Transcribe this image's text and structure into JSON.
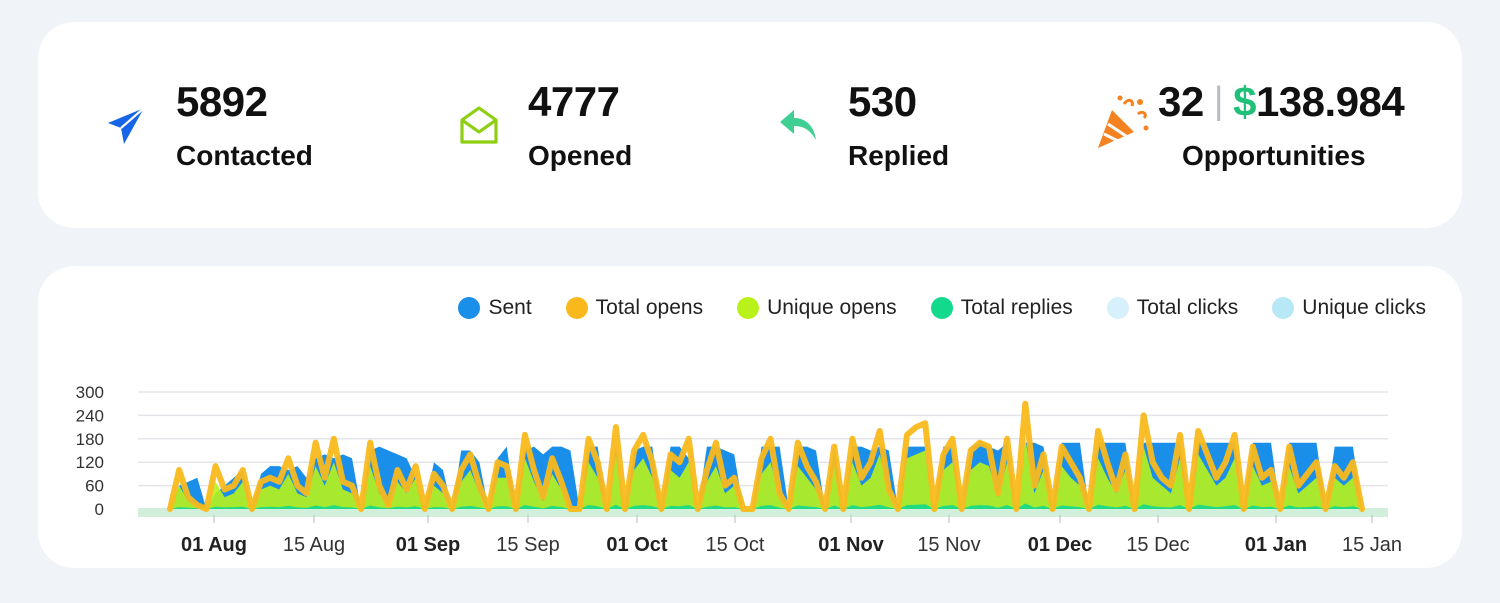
{
  "stats": {
    "contacted": {
      "value": "5892",
      "label": "Contacted",
      "icon": "paper-plane-icon",
      "color": "#1565e6"
    },
    "opened": {
      "value": "4777",
      "label": "Opened",
      "icon": "envelope-open-icon",
      "color": "#8ecf12"
    },
    "replied": {
      "value": "530",
      "label": "Replied",
      "icon": "reply-arrow-icon",
      "color": "#3fcf93"
    },
    "opportunities": {
      "count": "32",
      "separator": "|",
      "currency": "$",
      "amount": "138.984",
      "label": "Opportunities",
      "icon": "party-popper-icon",
      "color": "#f58220"
    }
  },
  "legend": [
    {
      "label": "Sent",
      "color": "#1a8fe9"
    },
    {
      "label": "Total opens",
      "color": "#f9b91c"
    },
    {
      "label": "Unique opens",
      "color": "#b8f21a"
    },
    {
      "label": "Total replies",
      "color": "#12d98c"
    },
    {
      "label": "Total clicks",
      "color": "#d6f1fb"
    },
    {
      "label": "Unique clicks",
      "color": "#b8e8f6"
    }
  ],
  "chart_data": {
    "type": "area",
    "yticks": [
      "300",
      "240",
      "180",
      "120",
      "60",
      "0"
    ],
    "ylim": [
      0,
      300
    ],
    "x_ticks": [
      {
        "label": "01 Aug",
        "major": true
      },
      {
        "label": "15 Aug",
        "major": false
      },
      {
        "label": "01 Sep",
        "major": true
      },
      {
        "label": "15 Sep",
        "major": false
      },
      {
        "label": "01 Oct",
        "major": true
      },
      {
        "label": "15 Oct",
        "major": false
      },
      {
        "label": "01 Nov",
        "major": true
      },
      {
        "label": "15 Nov",
        "major": false
      },
      {
        "label": "01 Dec",
        "major": true
      },
      {
        "label": "15 Dec",
        "major": false
      },
      {
        "label": "01 Jan",
        "major": true
      },
      {
        "label": "15 Jan",
        "major": false
      }
    ],
    "series": [
      {
        "name": "Sent",
        "color": "#1a8fe9",
        "values": [
          0,
          60,
          70,
          80,
          0,
          40,
          60,
          80,
          100,
          0,
          90,
          110,
          110,
          100,
          110,
          80,
          130,
          140,
          130,
          140,
          130,
          0,
          150,
          160,
          150,
          140,
          130,
          80,
          0,
          120,
          100,
          0,
          150,
          150,
          120,
          0,
          130,
          160,
          0,
          150,
          160,
          140,
          160,
          160,
          150,
          0,
          160,
          160,
          0,
          160,
          0,
          150,
          160,
          160,
          0,
          160,
          160,
          130,
          0,
          160,
          160,
          150,
          140,
          0,
          0,
          160,
          160,
          160,
          0,
          160,
          160,
          150,
          0,
          160,
          0,
          160,
          160,
          150,
          160,
          150,
          0,
          160,
          160,
          160,
          0,
          160,
          160,
          0,
          160,
          170,
          160,
          150,
          170,
          0,
          170,
          170,
          160,
          0,
          170,
          170,
          170,
          0,
          170,
          170,
          170,
          170,
          0,
          170,
          170,
          170,
          170,
          170,
          0,
          170,
          170,
          170,
          170,
          170,
          0,
          170,
          170,
          170,
          0,
          170,
          170,
          170,
          170,
          0,
          160,
          160,
          160,
          0
        ]
      },
      {
        "name": "Total opens",
        "color": "#f9b91c",
        "values": [
          0,
          100,
          30,
          10,
          0,
          110,
          50,
          60,
          100,
          0,
          70,
          80,
          70,
          130,
          60,
          40,
          170,
          80,
          180,
          70,
          60,
          0,
          170,
          60,
          10,
          100,
          50,
          110,
          0,
          90,
          60,
          0,
          100,
          140,
          60,
          0,
          120,
          110,
          0,
          190,
          100,
          30,
          130,
          70,
          0,
          0,
          180,
          120,
          0,
          210,
          0,
          150,
          190,
          120,
          0,
          140,
          120,
          180,
          0,
          100,
          170,
          60,
          80,
          0,
          0,
          130,
          180,
          40,
          0,
          170,
          110,
          70,
          0,
          160,
          0,
          180,
          80,
          120,
          200,
          50,
          0,
          190,
          210,
          220,
          0,
          140,
          180,
          0,
          150,
          170,
          160,
          40,
          180,
          0,
          270,
          60,
          140,
          0,
          160,
          120,
          80,
          0,
          200,
          120,
          50,
          140,
          0,
          240,
          120,
          80,
          60,
          190,
          0,
          200,
          140,
          80,
          120,
          190,
          0,
          160,
          80,
          100,
          0,
          160,
          60,
          90,
          120,
          0,
          110,
          80,
          120,
          0
        ]
      },
      {
        "name": "Unique opens",
        "color": "#b8f21a",
        "values": [
          0,
          60,
          20,
          10,
          0,
          70,
          30,
          40,
          70,
          0,
          50,
          60,
          50,
          90,
          40,
          30,
          110,
          60,
          120,
          50,
          40,
          0,
          110,
          40,
          10,
          70,
          40,
          80,
          0,
          60,
          40,
          0,
          70,
          100,
          40,
          0,
          80,
          80,
          0,
          130,
          70,
          20,
          90,
          50,
          0,
          0,
          120,
          80,
          0,
          140,
          0,
          100,
          130,
          80,
          0,
          100,
          80,
          120,
          0,
          70,
          110,
          40,
          60,
          0,
          0,
          90,
          120,
          30,
          0,
          110,
          80,
          50,
          0,
          110,
          0,
          120,
          60,
          80,
          140,
          40,
          0,
          130,
          140,
          150,
          0,
          100,
          120,
          0,
          100,
          120,
          110,
          30,
          120,
          0,
          180,
          40,
          100,
          0,
          110,
          80,
          60,
          0,
          130,
          80,
          40,
          100,
          0,
          160,
          80,
          60,
          40,
          130,
          0,
          140,
          100,
          60,
          80,
          130,
          0,
          110,
          60,
          70,
          0,
          110,
          40,
          60,
          80,
          0,
          80,
          60,
          80,
          0
        ]
      },
      {
        "name": "Total replies",
        "color": "#12d98c",
        "values": [
          0,
          5,
          3,
          2,
          0,
          6,
          4,
          5,
          6,
          0,
          5,
          6,
          5,
          8,
          4,
          3,
          9,
          5,
          10,
          5,
          4,
          0,
          9,
          4,
          2,
          6,
          4,
          7,
          0,
          5,
          4,
          0,
          6,
          8,
          4,
          0,
          7,
          7,
          0,
          10,
          6,
          2,
          8,
          5,
          0,
          0,
          10,
          7,
          0,
          11,
          0,
          8,
          10,
          7,
          0,
          8,
          7,
          10,
          0,
          6,
          9,
          4,
          5,
          0,
          0,
          8,
          10,
          3,
          0,
          9,
          7,
          5,
          0,
          9,
          0,
          10,
          5,
          7,
          11,
          4,
          0,
          10,
          11,
          12,
          0,
          8,
          10,
          0,
          8,
          10,
          9,
          3,
          10,
          0,
          14,
          4,
          8,
          0,
          9,
          7,
          5,
          0,
          11,
          7,
          4,
          8,
          0,
          12,
          7,
          5,
          4,
          10,
          0,
          11,
          8,
          5,
          7,
          10,
          0,
          9,
          5,
          6,
          0,
          9,
          4,
          5,
          7,
          0,
          7,
          5,
          7,
          0
        ]
      },
      {
        "name": "Total clicks",
        "color": "#d6f1fb",
        "values": []
      },
      {
        "name": "Unique clicks",
        "color": "#b8e8f6",
        "values": []
      }
    ]
  }
}
